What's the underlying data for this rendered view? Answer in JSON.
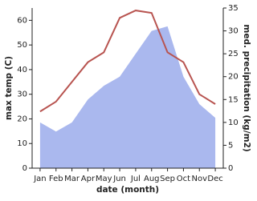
{
  "chart_data": {
    "type": "line",
    "xlabel": "date (month)",
    "ylabel": "max temp (C)",
    "y2label": "med. precipitation (kg/m2)",
    "categories": [
      "Jan",
      "Feb",
      "Mar",
      "Apr",
      "May",
      "Jun",
      "Jul",
      "Aug",
      "Sep",
      "Oct",
      "Nov",
      "Dec"
    ],
    "series": [
      {
        "type": "area",
        "axis": "y2",
        "color": "#aab8ee",
        "values": [
          10,
          8,
          10,
          15,
          18,
          20,
          25,
          30,
          31,
          20,
          14,
          11
        ]
      },
      {
        "type": "line",
        "axis": "y",
        "color": "#b85450",
        "values": [
          23,
          27,
          35,
          43,
          47,
          61,
          64,
          63,
          47,
          43,
          30,
          26
        ]
      }
    ],
    "ylim": [
      0,
      65
    ],
    "yticks": [
      0,
      10,
      20,
      30,
      40,
      50,
      60
    ],
    "y2lim": [
      0,
      35
    ],
    "y2ticks": [
      0,
      5,
      10,
      15,
      20,
      25,
      30,
      35
    ]
  }
}
